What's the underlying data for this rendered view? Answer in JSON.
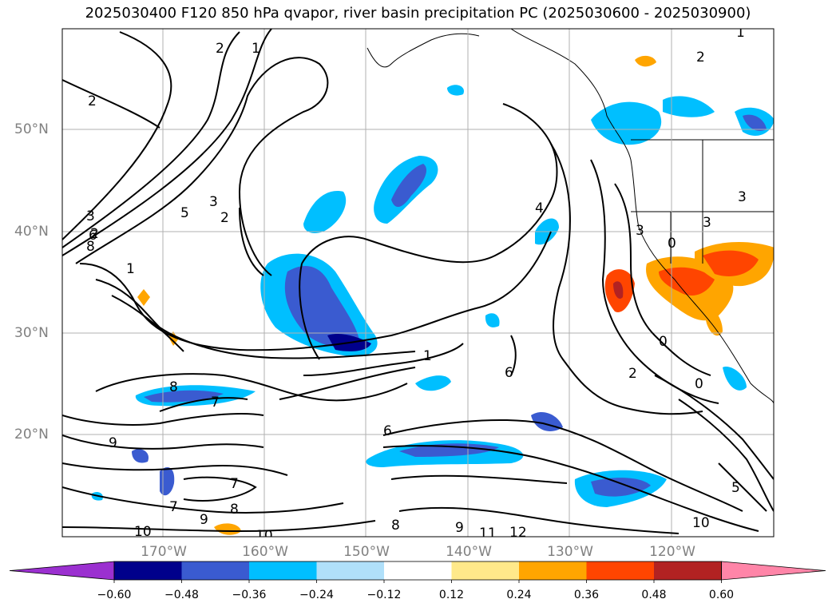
{
  "title": "2025030400 F120 850 hPa qvapor, river basin precipitation PC (2025030600 - 2025030900)",
  "lat_labels": [
    "50°N",
    "40°N",
    "30°N",
    "20°N"
  ],
  "lon_labels": [
    "170°W",
    "160°W",
    "150°W",
    "140°W",
    "130°W",
    "120°W"
  ],
  "colorbar": {
    "ticks": [
      "−0.60",
      "−0.48",
      "−0.36",
      "−0.24",
      "−0.12",
      "0.12",
      "0.24",
      "0.36",
      "0.48",
      "0.60"
    ],
    "colors": [
      "#9b30d0",
      "#00008b",
      "#3a5bd0",
      "#00bfff",
      "#b0e0fa",
      "#ffffff",
      "#ffe98a",
      "#ffa500",
      "#ff4500",
      "#b22222",
      "#ff85a8"
    ]
  },
  "contour_labels": [
    "1",
    "2",
    "2",
    "1",
    "2",
    "2",
    "3",
    "5",
    "3",
    "2",
    "6",
    "8",
    "1",
    "4",
    "3",
    "3",
    "0",
    "0",
    "2",
    "1",
    "6",
    "8",
    "7",
    "9",
    "6",
    "7",
    "7",
    "8",
    "9",
    "10",
    "10",
    "9",
    "8",
    "11",
    "12",
    "10",
    "5",
    "3",
    "0"
  ]
}
